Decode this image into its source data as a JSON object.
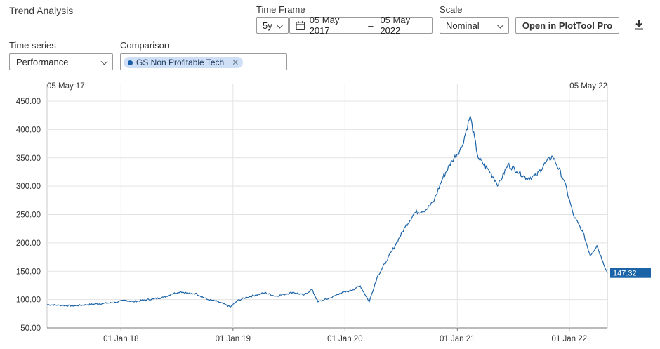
{
  "header": {
    "title": "Trend Analysis"
  },
  "controls": {
    "time_frame_label": "Time Frame",
    "period": "5y",
    "date_start": "05 May 2017",
    "date_sep": "–",
    "date_end": "05 May 2022",
    "scale_label": "Scale",
    "scale_value": "Nominal",
    "open_button": "Open in PlotTool Pro",
    "time_series_label": "Time series",
    "time_series_value": "Performance",
    "comparison_label": "Comparison",
    "comparison_chip": "GS Non Profitable Tech",
    "download_icon": "download-icon",
    "calendar_icon": "calendar-icon",
    "colors": {
      "line": "#1c64a8",
      "chip_bg": "#cfe0f6",
      "badge": "#1c64a8"
    }
  },
  "chart_data": {
    "type": "line",
    "range_start_label": "05 May 17",
    "range_end_label": "05 May 22",
    "x_ticks": [
      "01 Jan 18",
      "01 Jan 19",
      "01 Jan 20",
      "01 Jan 21",
      "01 Jan 22"
    ],
    "y_ticks": [
      "450.00",
      "400.00",
      "350.00",
      "300.00",
      "250.00",
      "200.00",
      "150.00",
      "100.00",
      "50.00"
    ],
    "ylim": [
      50,
      450
    ],
    "grid": true,
    "last_value_label": "147.32",
    "series": [
      {
        "x": [
          "2017-05-05",
          "2017-06-15",
          "2017-08-01",
          "2017-09-15",
          "2017-11-01",
          "2017-12-15",
          "2018-01-15",
          "2018-02-10",
          "2018-03-15",
          "2018-04-15",
          "2018-05-20",
          "2018-06-15",
          "2018-07-15",
          "2018-08-15",
          "2018-09-01",
          "2018-10-10",
          "2018-11-10",
          "2018-12-24",
          "2019-01-15",
          "2019-02-15",
          "2019-03-15",
          "2019-04-15",
          "2019-05-20",
          "2019-06-15",
          "2019-07-15",
          "2019-08-20",
          "2019-09-15",
          "2019-10-05",
          "2019-11-15",
          "2019-12-15",
          "2020-01-15",
          "2020-02-20",
          "2020-03-20",
          "2020-04-15",
          "2020-05-15",
          "2020-06-15",
          "2020-07-15",
          "2020-08-15",
          "2020-09-20",
          "2020-10-15",
          "2020-11-15",
          "2020-12-15",
          "2021-01-15",
          "2021-02-12",
          "2021-03-10",
          "2021-04-15",
          "2021-05-15",
          "2021-06-15",
          "2021-07-15",
          "2021-08-15",
          "2021-09-15",
          "2021-10-15",
          "2021-11-08",
          "2021-12-15",
          "2022-01-15",
          "2022-02-15",
          "2022-03-10",
          "2022-04-01",
          "2022-04-20",
          "2022-05-05"
        ],
        "values": [
          91,
          90,
          89,
          91,
          93,
          95,
          99,
          96,
          99,
          101,
          104,
          110,
          114,
          110,
          111,
          100,
          97,
          87,
          98,
          104,
          108,
          112,
          106,
          109,
          113,
          108,
          118,
          96,
          103,
          111,
          115,
          124,
          96,
          140,
          168,
          198,
          228,
          253,
          258,
          272,
          315,
          345,
          368,
          424,
          350,
          327,
          302,
          338,
          327,
          314,
          318,
          341,
          353,
          310,
          248,
          218,
          178,
          195,
          168,
          147
        ]
      }
    ]
  }
}
